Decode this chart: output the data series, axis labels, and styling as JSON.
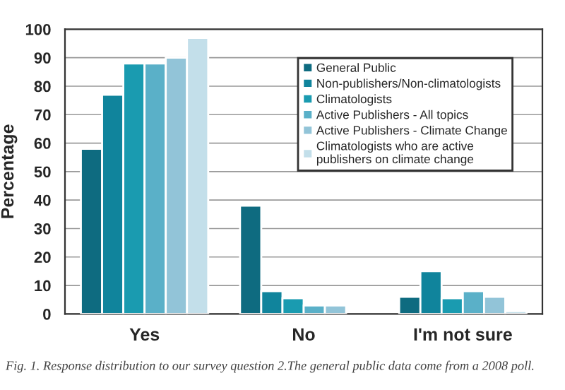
{
  "chart_data": {
    "type": "bar",
    "ylabel": "Percentage",
    "categories": [
      "Yes",
      "No",
      "I'm not sure"
    ],
    "series": [
      {
        "name": "General Public",
        "color": "#0e6b80",
        "values": [
          58,
          38,
          6
        ]
      },
      {
        "name": "Non-publishers/Non-climatologists",
        "color": "#10849c",
        "values": [
          77,
          8,
          15
        ]
      },
      {
        "name": "Climatologists",
        "color": "#1a9bb0",
        "values": [
          88,
          5.5,
          5.5
        ]
      },
      {
        "name": "Active Publishers - All topics",
        "color": "#5ab0c8",
        "values": [
          88,
          3,
          8
        ]
      },
      {
        "name": "Active Publishers - Climate Change",
        "color": "#92c4d8",
        "values": [
          90,
          3,
          6
        ]
      },
      {
        "name": "Climatologists who are active\npublishers on climate change",
        "color": "#c3dfea",
        "values": [
          97,
          null,
          1
        ]
      }
    ],
    "ylim": [
      0,
      100
    ],
    "yticks": [
      0,
      10,
      20,
      30,
      40,
      50,
      60,
      70,
      80,
      90,
      100
    ],
    "grid": "y",
    "legend": "top right",
    "annotations": [
      "Fig. 1. Response distribution to our survey question 2.The general public data come from a 2008 poll."
    ]
  }
}
